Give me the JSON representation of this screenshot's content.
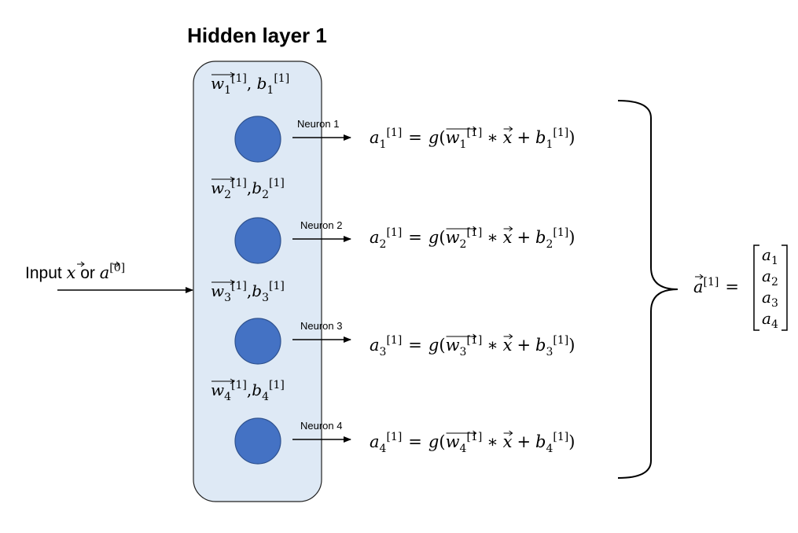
{
  "title": "Hidden layer 1",
  "input": {
    "prefix": "Input ",
    "x": "x",
    "or": " or ",
    "a": "a",
    "sup": "[0]"
  },
  "neurons": [
    {
      "label": "Neuron 1",
      "params": {
        "w": "w",
        "wsub": "1",
        "wsup": "[1]",
        "sep": ", ",
        "b": "b",
        "bsub": "1",
        "bsup": "[1]"
      },
      "eq": {
        "a": "a",
        "sub": "1",
        "sup": "[1]",
        "g": "g",
        "w": "w",
        "x": "x",
        "b": "b",
        "times": "∗",
        "plus": "+",
        "eq": "="
      }
    },
    {
      "label": "Neuron 2",
      "params": {
        "w": "w",
        "wsub": "2",
        "wsup": "[1]",
        "sep": ",",
        "b": "b",
        "bsub": "2",
        "bsup": "[1]"
      },
      "eq": {
        "a": "a",
        "sub": "2",
        "sup": "[1]",
        "g": "g",
        "w": "w",
        "x": "x",
        "b": "b",
        "times": "∗",
        "plus": "+",
        "eq": "="
      }
    },
    {
      "label": "Neuron 3",
      "params": {
        "w": "w",
        "wsub": "3",
        "wsup": "[1]",
        "sep": ",",
        "b": "b",
        "bsub": "3",
        "bsup": "[1]"
      },
      "eq": {
        "a": "a",
        "sub": "3",
        "sup": "[1]",
        "g": "g",
        "w": "w",
        "x": "x",
        "b": "b",
        "times": "∗",
        "plus": "+",
        "eq": "="
      }
    },
    {
      "label": "Neuron 4",
      "params": {
        "w": "w",
        "wsub": "4",
        "wsup": "[1]",
        "sep": ",",
        "b": "b",
        "bsub": "4",
        "bsup": "[1]"
      },
      "eq": {
        "a": "a",
        "sub": "4",
        "sup": "[1]",
        "g": "g",
        "w": "w",
        "x": "x",
        "b": "b",
        "times": "∗",
        "plus": "+",
        "eq": "="
      }
    }
  ],
  "output": {
    "a": "a",
    "sup": "[1]",
    "eq": "=",
    "vector": [
      {
        "a": "a",
        "sub": "1"
      },
      {
        "a": "a",
        "sub": "2"
      },
      {
        "a": "a",
        "sub": "3"
      },
      {
        "a": "a",
        "sub": "4"
      }
    ]
  },
  "colors": {
    "layer_fill": "#dee9f5",
    "layer_stroke": "#222222",
    "neuron_fill": "#4472c4",
    "neuron_stroke": "#2f528f",
    "line": "#000000"
  }
}
